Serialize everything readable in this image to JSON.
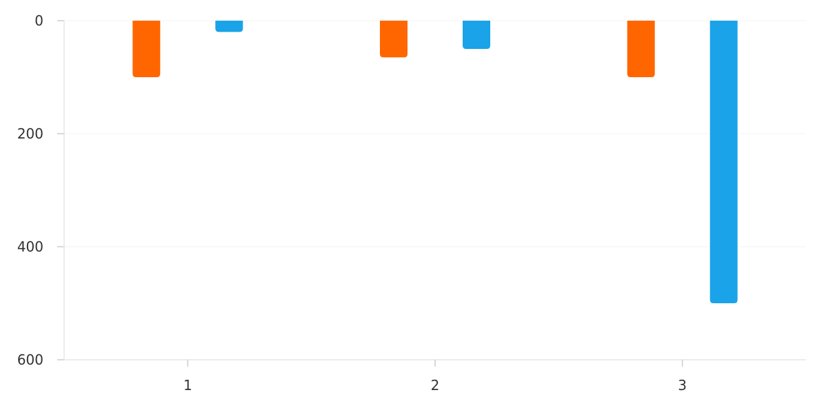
{
  "chart_data": {
    "type": "bar",
    "orientation": "vertical",
    "y_axis_reversed": true,
    "categories": [
      "1",
      "2",
      "3"
    ],
    "series": [
      {
        "values": [
          100,
          65,
          100
        ],
        "color": "#ff6600"
      },
      {
        "values": [
          20,
          50,
          500
        ],
        "color": "#1aa3e8"
      }
    ],
    "title": "",
    "xlabel": "",
    "ylabel": "",
    "ylim": [
      0,
      600
    ],
    "y_ticks": [
      0,
      200,
      400,
      600
    ],
    "grid": "horizontal",
    "legend": "none"
  }
}
